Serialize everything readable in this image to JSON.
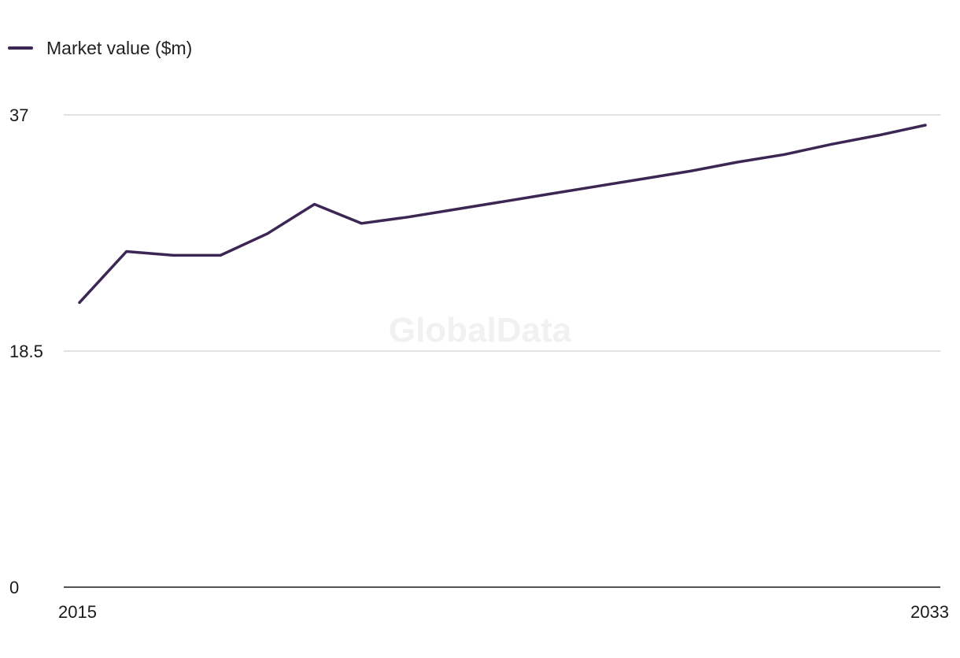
{
  "watermark": "GlobalData",
  "chart_data": {
    "type": "line",
    "title": "",
    "xlabel": "",
    "ylabel": "",
    "x": [
      2015,
      2016,
      2017,
      2018,
      2019,
      2020,
      2021,
      2022,
      2023,
      2024,
      2025,
      2026,
      2027,
      2028,
      2029,
      2030,
      2031,
      2032,
      2033
    ],
    "series": [
      {
        "name": "Market value ($m)",
        "color": "#3b2654",
        "values": [
          22.3,
          26.3,
          26.0,
          26.0,
          27.7,
          30.0,
          28.5,
          29.0,
          29.6,
          30.2,
          30.8,
          31.4,
          32.0,
          32.6,
          33.3,
          33.9,
          34.7,
          35.4,
          36.2
        ]
      }
    ],
    "ylim": [
      0,
      37
    ],
    "y_ticks": [
      "0",
      "18.5",
      "37"
    ],
    "x_ticks": [
      "2015",
      "2033"
    ],
    "grid": true,
    "legend": "top-left"
  }
}
